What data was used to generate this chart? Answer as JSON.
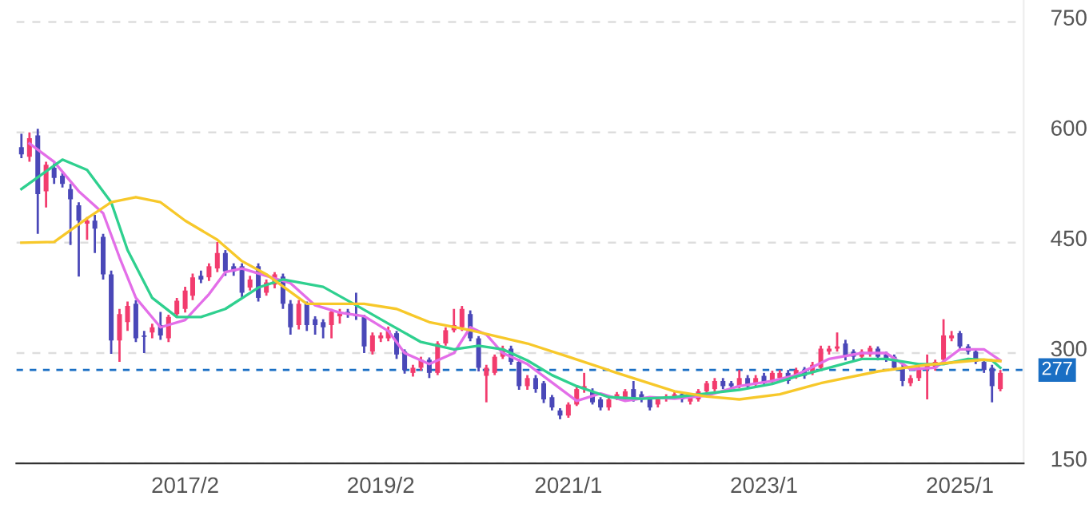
{
  "chart_data": {
    "type": "candlestick",
    "x": [
      "2015-06",
      "2015-07",
      "2015-08",
      "2015-09",
      "2015-10",
      "2015-11",
      "2015-12",
      "2016-01",
      "2016-02",
      "2016-03",
      "2016-04",
      "2016-05",
      "2016-06",
      "2016-07",
      "2016-08",
      "2016-09",
      "2016-10",
      "2016-11",
      "2016-12",
      "2017-01",
      "2017-02",
      "2017-03",
      "2017-04",
      "2017-05",
      "2017-06",
      "2017-07",
      "2017-08",
      "2017-09",
      "2017-10",
      "2017-11",
      "2017-12",
      "2018-01",
      "2018-02",
      "2018-03",
      "2018-04",
      "2018-05",
      "2018-06",
      "2018-07",
      "2018-08",
      "2018-09",
      "2018-10",
      "2018-11",
      "2018-12",
      "2019-01",
      "2019-02",
      "2019-03",
      "2019-04",
      "2019-05",
      "2019-06",
      "2019-07",
      "2019-08",
      "2019-09",
      "2019-10",
      "2019-11",
      "2019-12",
      "2020-01",
      "2020-02",
      "2020-03",
      "2020-04",
      "2020-05",
      "2020-06",
      "2020-07",
      "2020-08",
      "2020-09",
      "2020-10",
      "2020-11",
      "2020-12",
      "2021-01",
      "2021-02",
      "2021-03",
      "2021-04",
      "2021-05",
      "2021-06",
      "2021-07",
      "2021-08",
      "2021-09",
      "2021-10",
      "2021-11",
      "2021-12",
      "2022-01",
      "2022-02",
      "2022-03",
      "2022-04",
      "2022-05",
      "2022-06",
      "2022-07",
      "2022-08",
      "2022-09",
      "2022-10",
      "2022-11",
      "2022-12",
      "2023-01",
      "2023-02",
      "2023-03",
      "2023-04",
      "2023-05",
      "2023-06",
      "2023-07",
      "2023-08",
      "2023-09",
      "2023-10",
      "2023-11",
      "2023-12",
      "2024-01",
      "2024-02",
      "2024-03",
      "2024-04",
      "2024-05",
      "2024-06",
      "2024-07",
      "2024-08",
      "2024-09",
      "2024-10",
      "2024-11",
      "2024-12",
      "2025-01",
      "2025-02",
      "2025-03",
      "2025-04",
      "2025-05",
      "2025-06"
    ],
    "ohlc": [
      [
        580,
        598,
        565,
        570
      ],
      [
        567,
        600,
        560,
        592
      ],
      [
        596,
        605,
        462,
        516
      ],
      [
        520,
        560,
        498,
        556
      ],
      [
        552,
        558,
        530,
        538
      ],
      [
        541,
        545,
        525,
        530
      ],
      [
        523,
        530,
        447,
        509
      ],
      [
        501,
        505,
        404,
        480
      ],
      [
        476,
        485,
        454,
        480
      ],
      [
        480,
        488,
        436,
        469
      ],
      [
        458,
        462,
        400,
        407
      ],
      [
        407,
        412,
        299,
        317
      ],
      [
        317,
        360,
        288,
        353
      ],
      [
        342,
        370,
        330,
        364
      ],
      [
        367,
        372,
        315,
        320
      ],
      [
        324,
        330,
        300,
        322
      ],
      [
        328,
        340,
        320,
        335
      ],
      [
        338,
        356,
        318,
        324
      ],
      [
        320,
        352,
        315,
        349
      ],
      [
        353,
        375,
        348,
        371
      ],
      [
        360,
        390,
        355,
        385
      ],
      [
        378,
        408,
        372,
        403
      ],
      [
        405,
        412,
        395,
        400
      ],
      [
        403,
        422,
        398,
        418
      ],
      [
        415,
        451,
        410,
        436
      ],
      [
        436,
        440,
        405,
        411
      ],
      [
        418,
        422,
        405,
        411
      ],
      [
        418,
        422,
        375,
        382
      ],
      [
        389,
        405,
        385,
        400
      ],
      [
        418,
        422,
        370,
        375
      ],
      [
        382,
        400,
        378,
        396
      ],
      [
        393,
        410,
        388,
        407
      ],
      [
        404,
        408,
        360,
        367
      ],
      [
        367,
        372,
        325,
        335
      ],
      [
        338,
        372,
        332,
        367
      ],
      [
        367,
        370,
        330,
        338
      ],
      [
        346,
        350,
        325,
        338
      ],
      [
        342,
        346,
        320,
        335
      ],
      [
        338,
        360,
        320,
        356
      ],
      [
        350,
        360,
        340,
        356
      ],
      [
        356,
        360,
        348,
        353
      ],
      [
        353,
        382,
        345,
        350
      ],
      [
        349,
        352,
        300,
        309
      ],
      [
        302,
        328,
        298,
        324
      ],
      [
        320,
        328,
        315,
        324
      ],
      [
        320,
        336,
        316,
        331
      ],
      [
        327,
        330,
        292,
        298
      ],
      [
        302,
        305,
        272,
        277
      ],
      [
        273,
        284,
        268,
        280
      ],
      [
        280,
        295,
        276,
        291
      ],
      [
        291,
        294,
        266,
        273
      ],
      [
        273,
        316,
        270,
        313
      ],
      [
        313,
        335,
        310,
        331
      ],
      [
        331,
        360,
        328,
        338
      ],
      [
        335,
        364,
        330,
        360
      ],
      [
        353,
        358,
        316,
        320
      ],
      [
        320,
        323,
        275,
        280
      ],
      [
        269,
        284,
        233,
        280
      ],
      [
        273,
        298,
        270,
        295
      ],
      [
        295,
        310,
        292,
        306
      ],
      [
        306,
        310,
        284,
        288
      ],
      [
        288,
        292,
        250,
        255
      ],
      [
        255,
        270,
        250,
        266
      ],
      [
        266,
        270,
        246,
        251
      ],
      [
        259,
        262,
        232,
        237
      ],
      [
        240,
        243,
        222,
        226
      ],
      [
        222,
        225,
        210,
        215
      ],
      [
        215,
        233,
        212,
        230
      ],
      [
        230,
        254,
        228,
        251
      ],
      [
        251,
        273,
        246,
        255
      ],
      [
        248,
        252,
        230,
        233
      ],
      [
        237,
        240,
        222,
        226
      ],
      [
        226,
        240,
        222,
        237
      ],
      [
        240,
        247,
        236,
        244
      ],
      [
        237,
        251,
        234,
        248
      ],
      [
        251,
        262,
        234,
        237
      ],
      [
        244,
        248,
        233,
        237
      ],
      [
        237,
        240,
        222,
        226
      ],
      [
        230,
        240,
        226,
        237
      ],
      [
        237,
        244,
        234,
        241
      ],
      [
        241,
        248,
        238,
        244
      ],
      [
        244,
        247,
        233,
        237
      ],
      [
        234,
        244,
        230,
        241
      ],
      [
        237,
        251,
        234,
        248
      ],
      [
        248,
        262,
        245,
        259
      ],
      [
        251,
        266,
        248,
        262
      ],
      [
        262,
        266,
        251,
        255
      ],
      [
        259,
        262,
        251,
        255
      ],
      [
        255,
        277,
        252,
        266
      ],
      [
        266,
        270,
        251,
        255
      ],
      [
        259,
        270,
        255,
        266
      ],
      [
        269,
        273,
        255,
        259
      ],
      [
        262,
        276,
        258,
        273
      ],
      [
        266,
        277,
        262,
        273
      ],
      [
        273,
        277,
        258,
        262
      ],
      [
        269,
        280,
        265,
        277
      ],
      [
        277,
        281,
        265,
        269
      ],
      [
        273,
        288,
        270,
        284
      ],
      [
        280,
        310,
        277,
        306
      ],
      [
        302,
        310,
        298,
        306
      ],
      [
        306,
        328,
        302,
        309
      ],
      [
        313,
        318,
        290,
        295
      ],
      [
        302,
        305,
        290,
        295
      ],
      [
        295,
        305,
        291,
        302
      ],
      [
        298,
        310,
        295,
        307
      ],
      [
        306,
        309,
        290,
        295
      ],
      [
        298,
        302,
        288,
        291
      ],
      [
        295,
        298,
        277,
        280
      ],
      [
        280,
        284,
        255,
        262
      ],
      [
        259,
        270,
        255,
        266
      ],
      [
        266,
        284,
        262,
        280
      ],
      [
        278,
        298,
        237,
        284
      ],
      [
        280,
        291,
        276,
        288
      ],
      [
        291,
        346,
        288,
        324
      ],
      [
        320,
        330,
        316,
        324
      ],
      [
        327,
        330,
        305,
        309
      ],
      [
        309,
        312,
        298,
        302
      ],
      [
        302,
        305,
        285,
        288
      ],
      [
        288,
        291,
        273,
        277
      ],
      [
        280,
        284,
        233,
        255
      ],
      [
        251,
        277,
        248,
        273
      ]
    ],
    "colors": [
      "#4a48b8",
      "#f23c6e",
      "#4a48b8",
      "#f23c6e",
      "#4a48b8",
      "#4a48b8",
      "#4a48b8",
      "#4a48b8",
      "#f23c6e",
      "#4a48b8",
      "#4a48b8",
      "#4a48b8",
      "#f23c6e",
      "#f23c6e",
      "#4a48b8",
      "#4a48b8",
      "#f23c6e",
      "#4a48b8",
      "#f23c6e",
      "#f23c6e",
      "#f23c6e",
      "#f23c6e",
      "#4a48b8",
      "#f23c6e",
      "#f23c6e",
      "#4a48b8",
      "#4a48b8",
      "#4a48b8",
      "#f23c6e",
      "#4a48b8",
      "#f23c6e",
      "#f23c6e",
      "#4a48b8",
      "#4a48b8",
      "#f23c6e",
      "#4a48b8",
      "#4a48b8",
      "#4a48b8",
      "#f23c6e",
      "#f23c6e",
      "#4a48b8",
      "#4a48b8",
      "#4a48b8",
      "#f23c6e",
      "#f23c6e",
      "#f23c6e",
      "#4a48b8",
      "#4a48b8",
      "#f23c6e",
      "#f23c6e",
      "#4a48b8",
      "#f23c6e",
      "#f23c6e",
      "#f23c6e",
      "#f23c6e",
      "#4a48b8",
      "#4a48b8",
      "#f23c6e",
      "#f23c6e",
      "#f23c6e",
      "#4a48b8",
      "#4a48b8",
      "#f23c6e",
      "#4a48b8",
      "#4a48b8",
      "#4a48b8",
      "#4a48b8",
      "#f23c6e",
      "#f23c6e",
      "#f23c6e",
      "#4a48b8",
      "#4a48b8",
      "#f23c6e",
      "#f23c6e",
      "#f23c6e",
      "#4a48b8",
      "#4a48b8",
      "#4a48b8",
      "#f23c6e",
      "#f23c6e",
      "#f23c6e",
      "#4a48b8",
      "#f23c6e",
      "#f23c6e",
      "#f23c6e",
      "#f23c6e",
      "#4a48b8",
      "#4a48b8",
      "#f23c6e",
      "#4a48b8",
      "#f23c6e",
      "#4a48b8",
      "#f23c6e",
      "#f23c6e",
      "#4a48b8",
      "#f23c6e",
      "#4a48b8",
      "#f23c6e",
      "#f23c6e",
      "#f23c6e",
      "#f23c6e",
      "#4a48b8",
      "#4a48b8",
      "#f23c6e",
      "#f23c6e",
      "#4a48b8",
      "#4a48b8",
      "#4a48b8",
      "#4a48b8",
      "#f23c6e",
      "#f23c6e",
      "#f23c6e",
      "#f23c6e",
      "#f23c6e",
      "#f23c6e",
      "#4a48b8",
      "#4a48b8",
      "#4a48b8",
      "#4a48b8",
      "#4a48b8",
      "#f23c6e"
    ],
    "series": [
      {
        "type": "line",
        "color": "#e36ee8",
        "x": [
          "2015-07",
          "2015-10",
          "2016-01",
          "2016-04",
          "2016-06",
          "2016-08",
          "2016-11",
          "2017-02",
          "2017-05",
          "2017-07",
          "2017-09",
          "2017-12",
          "2018-03",
          "2018-06",
          "2018-09",
          "2018-12",
          "2019-03",
          "2019-05",
          "2019-08",
          "2019-11",
          "2020-01",
          "2020-03",
          "2020-05",
          "2020-08",
          "2020-11",
          "2021-02",
          "2021-05",
          "2021-08",
          "2021-11",
          "2022-02",
          "2022-06",
          "2022-10",
          "2023-02",
          "2023-05",
          "2023-09",
          "2024-01",
          "2024-04",
          "2024-07",
          "2024-10",
          "2025-01",
          "2025-04",
          "2025-06"
        ],
        "values": [
          585,
          560,
          520,
          490,
          430,
          375,
          335,
          345,
          380,
          410,
          415,
          405,
          395,
          365,
          355,
          350,
          330,
          300,
          285,
          300,
          335,
          325,
          300,
          285,
          260,
          235,
          245,
          235,
          240,
          238,
          242,
          255,
          262,
          270,
          292,
          300,
          300,
          278,
          280,
          305,
          305,
          290
        ]
      },
      {
        "type": "line",
        "color": "#2fd08f",
        "x": [
          "2015-06",
          "2015-11",
          "2016-02",
          "2016-05",
          "2016-07",
          "2016-10",
          "2017-01",
          "2017-04",
          "2017-07",
          "2017-11",
          "2018-02",
          "2018-07",
          "2018-11",
          "2019-03",
          "2019-07",
          "2019-11",
          "2020-02",
          "2020-05",
          "2020-08",
          "2020-11",
          "2021-02",
          "2021-06",
          "2021-10",
          "2022-02",
          "2022-06",
          "2022-10",
          "2023-02",
          "2023-05",
          "2023-09",
          "2024-01",
          "2024-04",
          "2024-08",
          "2024-11",
          "2025-02",
          "2025-05",
          "2025-06"
        ],
        "values": [
          523,
          563,
          549,
          505,
          440,
          375,
          349,
          349,
          360,
          389,
          400,
          390,
          365,
          340,
          315,
          305,
          310,
          305,
          290,
          270,
          255,
          240,
          238,
          240,
          245,
          250,
          258,
          268,
          280,
          292,
          292,
          285,
          285,
          292,
          290,
          280
        ]
      },
      {
        "type": "line",
        "color": "#f7c82a",
        "x": [
          "2015-06",
          "2015-10",
          "2016-02",
          "2016-05",
          "2016-08",
          "2016-11",
          "2017-02",
          "2017-06",
          "2017-09",
          "2017-12",
          "2018-05",
          "2018-12",
          "2019-04",
          "2019-08",
          "2020-01",
          "2020-08",
          "2021-01",
          "2021-07",
          "2022-02",
          "2022-06",
          "2022-10",
          "2023-03",
          "2023-08",
          "2024-03",
          "2024-09",
          "2025-04",
          "2025-06"
        ],
        "values": [
          450,
          451,
          483,
          505,
          512,
          505,
          480,
          454,
          425,
          407,
          367,
          367,
          360,
          342,
          331,
          313,
          295,
          273,
          248,
          241,
          237,
          244,
          259,
          275,
          284,
          291,
          289
        ]
      }
    ],
    "xlim": [
      "2015-05-13",
      "2025-08-27"
    ],
    "xticks": [
      {
        "value": "2017-02",
        "label": "2017/2"
      },
      {
        "value": "2019-02",
        "label": "2019/2"
      },
      {
        "value": "2021-01",
        "label": "2021/1"
      },
      {
        "value": "2023-01",
        "label": "2023/1"
      },
      {
        "value": "2025-01",
        "label": "2025/1"
      }
    ],
    "ylim": [
      150,
      780
    ],
    "yticks": [
      150,
      300,
      450,
      600,
      750
    ],
    "ref_lines": [
      {
        "axis": "y",
        "value": 277,
        "label": "277",
        "color": "#1a6fc4",
        "line_style": "dashed"
      }
    ],
    "grid": "y"
  }
}
